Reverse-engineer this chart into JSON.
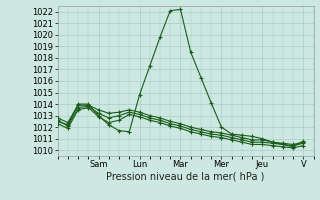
{
  "xlabel": "Pression niveau de la mer( hPa )",
  "bg_color": "#cce8e0",
  "grid_color": "#aacccc",
  "line_color": "#1a5c1a",
  "ylim": [
    1009.5,
    1022.5
  ],
  "yticks": [
    1010,
    1011,
    1012,
    1013,
    1014,
    1015,
    1016,
    1017,
    1018,
    1019,
    1020,
    1021,
    1022
  ],
  "day_labels": [
    "Sam",
    "Lun",
    "Mar",
    "Mer",
    "Jeu",
    "V"
  ],
  "day_positions": [
    8,
    16,
    24,
    32,
    40,
    48
  ],
  "xlim": [
    0,
    50
  ],
  "line1_x": [
    0,
    2,
    4,
    6,
    8,
    10,
    12,
    14,
    16,
    18,
    20,
    22,
    24,
    26,
    28,
    30,
    32,
    34,
    36,
    38,
    40,
    42,
    44,
    46,
    48
  ],
  "line1_y": [
    1012.5,
    1012.2,
    1014.0,
    1014.0,
    1013.0,
    1012.2,
    1011.7,
    1011.6,
    1014.8,
    1017.3,
    1019.8,
    1022.1,
    1022.2,
    1018.5,
    1016.3,
    1014.1,
    1012.0,
    1011.4,
    1011.3,
    1011.2,
    1011.0,
    1010.7,
    1010.5,
    1010.3,
    1010.8
  ],
  "line2_x": [
    0,
    2,
    4,
    6,
    8,
    10,
    12,
    14,
    16,
    18,
    20,
    22,
    24,
    26,
    28,
    30,
    32,
    34,
    36,
    38,
    40,
    42,
    44,
    46,
    48
  ],
  "line2_y": [
    1012.8,
    1012.4,
    1013.9,
    1013.9,
    1013.5,
    1013.2,
    1013.3,
    1013.5,
    1013.3,
    1013.0,
    1012.8,
    1012.5,
    1012.3,
    1012.0,
    1011.8,
    1011.6,
    1011.5,
    1011.3,
    1011.1,
    1010.9,
    1010.9,
    1010.7,
    1010.6,
    1010.5,
    1010.7
  ],
  "line3_x": [
    0,
    2,
    4,
    6,
    8,
    10,
    12,
    14,
    16,
    18,
    20,
    22,
    24,
    26,
    28,
    30,
    32,
    34,
    36,
    38,
    40,
    42,
    44,
    46,
    48
  ],
  "line3_y": [
    1012.6,
    1012.1,
    1013.7,
    1013.8,
    1013.2,
    1012.8,
    1013.0,
    1013.3,
    1013.1,
    1012.8,
    1012.6,
    1012.3,
    1012.1,
    1011.8,
    1011.6,
    1011.4,
    1011.3,
    1011.1,
    1010.9,
    1010.7,
    1010.7,
    1010.6,
    1010.5,
    1010.4,
    1010.6
  ],
  "line4_x": [
    0,
    2,
    4,
    6,
    8,
    10,
    12,
    14,
    16,
    18,
    20,
    22,
    24,
    26,
    28,
    30,
    32,
    34,
    36,
    38,
    40,
    42,
    44,
    46,
    48
  ],
  "line4_y": [
    1012.3,
    1011.9,
    1013.5,
    1013.7,
    1012.9,
    1012.4,
    1012.6,
    1013.1,
    1012.9,
    1012.6,
    1012.4,
    1012.1,
    1011.9,
    1011.6,
    1011.4,
    1011.2,
    1011.1,
    1010.9,
    1010.7,
    1010.5,
    1010.5,
    1010.4,
    1010.3,
    1010.2,
    1010.4
  ],
  "marker": "+",
  "marker_size": 3,
  "linewidth": 0.8,
  "font_size": 6,
  "xlabel_fontsize": 7
}
